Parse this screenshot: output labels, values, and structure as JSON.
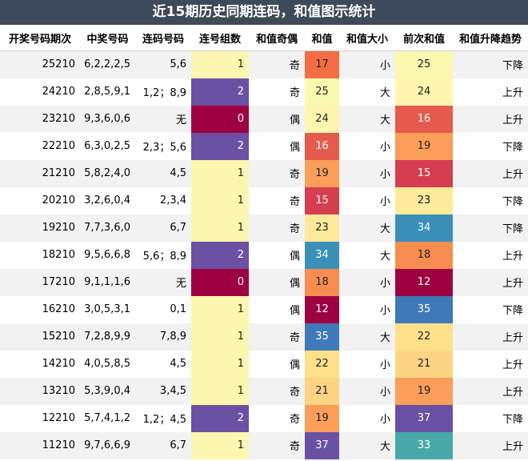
{
  "title": "近15期历史同期连码，和值图示统计",
  "chart_data": {
    "type": "table",
    "columns": [
      "开奖号码期次",
      "中奖号码",
      "连码号码",
      "连号组数",
      "和值奇偶",
      "和值",
      "和值大小",
      "前次和值",
      "和值升降趋势"
    ],
    "rows": [
      {
        "period": "25210",
        "numbers": "6,2,2,2,5",
        "consecutive": "5,6",
        "groups": 1,
        "parity": "奇",
        "sum": 17,
        "size": "小",
        "prev_sum": 25,
        "trend": "下降"
      },
      {
        "period": "24210",
        "numbers": "2,8,5,9,1",
        "consecutive": "1,2；8,9",
        "groups": 2,
        "parity": "奇",
        "sum": 25,
        "size": "大",
        "prev_sum": 24,
        "trend": "上升"
      },
      {
        "period": "23210",
        "numbers": "9,3,6,0,6",
        "consecutive": "无",
        "groups": 0,
        "parity": "偶",
        "sum": 24,
        "size": "大",
        "prev_sum": 16,
        "trend": "上升"
      },
      {
        "period": "22210",
        "numbers": "6,3,0,2,5",
        "consecutive": "2,3；5,6",
        "groups": 2,
        "parity": "偶",
        "sum": 16,
        "size": "小",
        "prev_sum": 19,
        "trend": "下降"
      },
      {
        "period": "21210",
        "numbers": "5,8,2,4,0",
        "consecutive": "4,5",
        "groups": 1,
        "parity": "奇",
        "sum": 19,
        "size": "小",
        "prev_sum": 15,
        "trend": "上升"
      },
      {
        "period": "20210",
        "numbers": "3,2,6,0,4",
        "consecutive": "2,3,4",
        "groups": 1,
        "parity": "奇",
        "sum": 15,
        "size": "小",
        "prev_sum": 23,
        "trend": "下降"
      },
      {
        "period": "19210",
        "numbers": "7,7,3,6,0",
        "consecutive": "6,7",
        "groups": 1,
        "parity": "奇",
        "sum": 23,
        "size": "大",
        "prev_sum": 34,
        "trend": "下降"
      },
      {
        "period": "18210",
        "numbers": "9,5,6,6,8",
        "consecutive": "5,6；8,9",
        "groups": 2,
        "parity": "偶",
        "sum": 34,
        "size": "大",
        "prev_sum": 18,
        "trend": "上升"
      },
      {
        "period": "17210",
        "numbers": "9,1,1,1,6",
        "consecutive": "无",
        "groups": 0,
        "parity": "偶",
        "sum": 18,
        "size": "小",
        "prev_sum": 12,
        "trend": "上升"
      },
      {
        "period": "16210",
        "numbers": "3,0,5,3,1",
        "consecutive": "0,1",
        "groups": 1,
        "parity": "偶",
        "sum": 12,
        "size": "小",
        "prev_sum": 35,
        "trend": "下降"
      },
      {
        "period": "15210",
        "numbers": "7,2,8,9,9",
        "consecutive": "7,8,9",
        "groups": 1,
        "parity": "奇",
        "sum": 35,
        "size": "大",
        "prev_sum": 22,
        "trend": "上升"
      },
      {
        "period": "14210",
        "numbers": "4,0,5,8,5",
        "consecutive": "4,5",
        "groups": 1,
        "parity": "偶",
        "sum": 22,
        "size": "小",
        "prev_sum": 21,
        "trend": "上升"
      },
      {
        "period": "13210",
        "numbers": "5,3,9,0,4",
        "consecutive": "3,4,5",
        "groups": 1,
        "parity": "奇",
        "sum": 21,
        "size": "小",
        "prev_sum": 19,
        "trend": "上升"
      },
      {
        "period": "12210",
        "numbers": "5,7,4,1,2",
        "consecutive": "1,2；4,5",
        "groups": 2,
        "parity": "奇",
        "sum": 19,
        "size": "小",
        "prev_sum": 37,
        "trend": "下降"
      },
      {
        "period": "11210",
        "numbers": "9,7,6,6,9",
        "consecutive": "6,7",
        "groups": 1,
        "parity": "奇",
        "sum": 37,
        "size": "大",
        "prev_sum": 33,
        "trend": "上升"
      }
    ]
  },
  "colors": {
    "groups": {
      "0": "#9e0142",
      "1": "#fcf6b0",
      "2": "#6a51a3"
    },
    "sum_scale": [
      {
        "value": 12,
        "color": "#9e0142"
      },
      {
        "value": 15,
        "color": "#d53e4f"
      },
      {
        "value": 16,
        "color": "#e45a4c"
      },
      {
        "value": 17,
        "color": "#f46d43"
      },
      {
        "value": 18,
        "color": "#f88d52"
      },
      {
        "value": 19,
        "color": "#fa9e59"
      },
      {
        "value": 21,
        "color": "#fdd384"
      },
      {
        "value": 22,
        "color": "#fee08b"
      },
      {
        "value": 23,
        "color": "#feea9a"
      },
      {
        "value": 24,
        "color": "#fef6b0"
      },
      {
        "value": 25,
        "color": "#fbf8b0"
      },
      {
        "value": 33,
        "color": "#48a9a8"
      },
      {
        "value": 34,
        "color": "#3a90b8"
      },
      {
        "value": 35,
        "color": "#3f79b8"
      },
      {
        "value": 37,
        "color": "#6a51a3"
      }
    ],
    "light_text_threshold": 30
  }
}
